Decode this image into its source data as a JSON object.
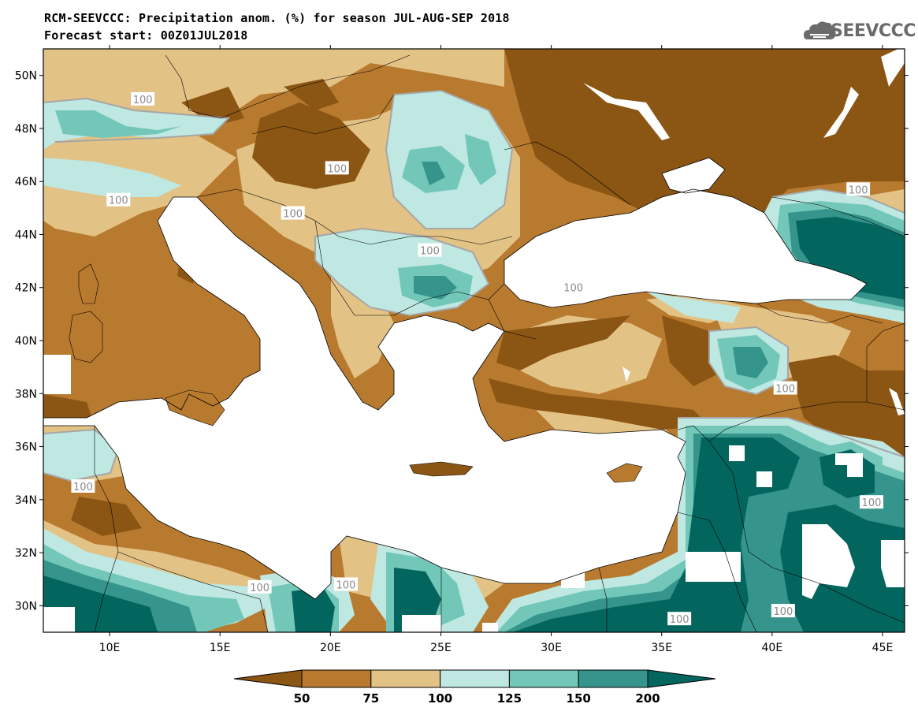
{
  "title_line1": "RCM-SEEVCCC: Precipitation anom. (%) for season JUL-AUG-SEP 2018",
  "title_line2": "Forecast start: 00Z01JUL2018",
  "logo_text": "SEEVCCC",
  "map": {
    "lon_range": [
      7,
      46
    ],
    "lat_range": [
      29,
      51
    ],
    "lat_labels": [
      "50N",
      "48N",
      "46N",
      "44N",
      "42N",
      "40N",
      "38N",
      "36N",
      "34N",
      "32N",
      "30N"
    ],
    "lat_values": [
      50,
      48,
      46,
      44,
      42,
      40,
      38,
      36,
      34,
      32,
      30
    ],
    "lon_labels": [
      "10E",
      "15E",
      "20E",
      "25E",
      "30E",
      "35E",
      "40E",
      "45E"
    ],
    "lon_values": [
      10,
      15,
      20,
      25,
      30,
      35,
      40,
      45
    ],
    "contour_label": "100",
    "contour_labels_count": 14
  },
  "colorbar": {
    "boundaries": [
      "50",
      "75",
      "100",
      "125",
      "150",
      "200"
    ],
    "colors": [
      "#8b5513",
      "#b87a2e",
      "#e2c285",
      "#bfe8e2",
      "#73c7b9",
      "#35958c",
      "#03665e"
    ]
  },
  "chart_data": {
    "type": "heatmap",
    "title": "RCM-SEEVCCC: Precipitation anom. (%) for season JUL-AUG-SEP 2018",
    "subtitle": "Forecast start: 00Z01JUL2018",
    "xlabel": "",
    "ylabel": "",
    "xlim": [
      7,
      46
    ],
    "ylim": [
      29,
      51
    ],
    "levels": [
      50,
      75,
      100,
      125,
      150,
      200
    ],
    "legend": "bottom"
  }
}
